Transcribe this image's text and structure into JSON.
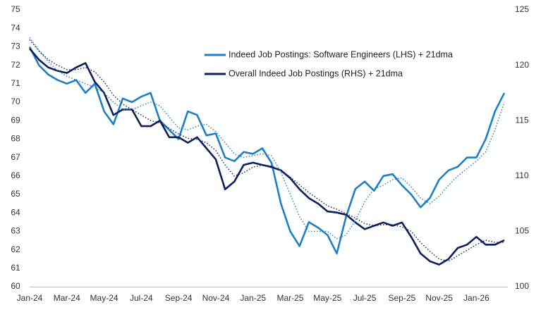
{
  "chart_data": {
    "type": "line",
    "categories": [
      "Jan-24",
      null,
      null,
      null,
      "Mar-24",
      null,
      null,
      null,
      "May-24",
      null,
      null,
      null,
      "Jul-24",
      null,
      null,
      null,
      "Sep-24",
      null,
      null,
      null,
      "Nov-24",
      null,
      null,
      null,
      "Jan-25",
      null,
      null,
      null,
      "Mar-25",
      null,
      null,
      null,
      "May-25",
      null,
      null,
      null,
      "Jul-25",
      null,
      null,
      null,
      "Sep-25",
      null,
      null,
      null,
      "Nov-25",
      null,
      null,
      null,
      "Jan-26",
      null,
      null,
      null
    ],
    "ylim": [
      60,
      75
    ],
    "yticks": [
      60,
      61,
      62,
      63,
      64,
      65,
      66,
      67,
      68,
      69,
      70,
      71,
      72,
      73,
      74,
      75
    ],
    "y2lim": [
      100,
      125
    ],
    "y2ticks": [
      100,
      105,
      110,
      115,
      120,
      125
    ],
    "legend": "upper center",
    "series": [
      {
        "name": "Indeed Job Postings: Software Engineers (LHS) + 21dma",
        "color": "#1f7fc4",
        "style": "solid",
        "values": [
          73.0,
          72.0,
          71.5,
          71.2,
          71.0,
          71.2,
          70.5,
          71.0,
          69.5,
          68.8,
          70.2,
          70.0,
          70.3,
          70.5,
          69.0,
          68.5,
          68.0,
          69.5,
          69.3,
          68.2,
          68.3,
          67.0,
          66.8,
          67.3,
          67.2,
          67.5,
          66.7,
          64.5,
          63.0,
          62.2,
          63.5,
          63.2,
          62.8,
          61.8,
          63.8,
          65.3,
          65.7,
          65.2,
          66.0,
          66.1,
          65.5,
          65.0,
          64.3,
          64.8,
          65.8,
          66.3,
          66.5,
          67.0,
          67.0,
          68.0,
          69.5,
          70.5
        ]
      },
      {
        "name": "Overall Indeed Job Postings (RHS) + 21dma",
        "color": "#0d1f5c",
        "style": "solid",
        "axis": "y2",
        "values": [
          121.5,
          120.5,
          119.8,
          119.5,
          119.3,
          119.8,
          120.2,
          118.5,
          117.5,
          115.5,
          116.0,
          116.0,
          114.5,
          114.5,
          115.0,
          113.5,
          113.5,
          113.0,
          113.5,
          112.5,
          111.5,
          108.8,
          109.5,
          111.0,
          111.2,
          111.0,
          110.8,
          110.5,
          109.8,
          108.8,
          108.0,
          107.5,
          106.8,
          106.7,
          106.5,
          105.8,
          105.2,
          105.5,
          105.8,
          105.5,
          105.8,
          104.5,
          103.0,
          102.3,
          102.0,
          102.5,
          103.5,
          103.8,
          104.5,
          103.8,
          103.8,
          104.2
        ]
      },
      {
        "color": "#1f7fc4",
        "style": "dotted",
        "values": [
          73.5,
          72.8,
          72.2,
          71.7,
          71.4,
          71.2,
          71.0,
          70.8,
          70.5,
          70.0,
          69.6,
          69.6,
          69.8,
          70.0,
          69.8,
          69.2,
          68.6,
          68.5,
          68.7,
          68.8,
          68.4,
          67.8,
          67.2,
          67.0,
          67.1,
          67.2,
          67.1,
          66.2,
          65.0,
          63.8,
          63.0,
          63.0,
          63.0,
          62.6,
          62.8,
          63.6,
          64.6,
          65.3,
          65.5,
          65.8,
          65.9,
          65.4,
          64.8,
          64.5,
          64.9,
          65.5,
          66.0,
          66.4,
          66.8,
          67.3,
          68.5,
          70.0
        ]
      },
      {
        "color": "#0d1f5c",
        "style": "dotted",
        "axis": "y2",
        "values": [
          122.3,
          121.3,
          120.5,
          120.0,
          119.6,
          119.6,
          119.8,
          119.4,
          118.5,
          117.3,
          116.5,
          116.0,
          115.5,
          115.0,
          114.8,
          114.3,
          113.8,
          113.4,
          113.3,
          113.0,
          112.3,
          111.0,
          110.0,
          110.3,
          110.8,
          111.0,
          110.9,
          110.5,
          109.9,
          109.2,
          108.5,
          107.9,
          107.3,
          107.0,
          106.6,
          106.2,
          105.7,
          105.5,
          105.6,
          105.6,
          105.4,
          105.0,
          104.0,
          103.2,
          102.5,
          102.3,
          102.8,
          103.3,
          103.8,
          104.2,
          104.0,
          104.0
        ]
      }
    ]
  }
}
